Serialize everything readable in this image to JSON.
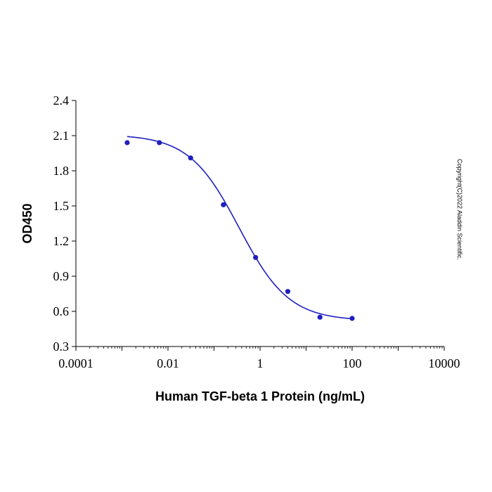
{
  "chart_data": {
    "type": "scatter",
    "xscale": "log",
    "xlabel": "Human TGF-beta 1 Protein (ng/mL)",
    "ylabel": "OD450",
    "xlim": [
      0.0001,
      10000
    ],
    "ylim": [
      0.3,
      2.4
    ],
    "xticks": [
      0.0001,
      0.001,
      0.01,
      0.1,
      1,
      10,
      100,
      1000,
      10000
    ],
    "xtick_labels": [
      "0.0001",
      "",
      "0.01",
      "",
      "1",
      "",
      "100",
      "",
      "10000"
    ],
    "yticks": [
      0.3,
      0.6,
      0.9,
      1.2,
      1.5,
      1.8,
      2.1,
      2.4
    ],
    "ytick_labels": [
      "0.3",
      "0.6",
      "0.9",
      "1.2",
      "1.5",
      "1.8",
      "2.1",
      "2.4"
    ],
    "grid": false,
    "series": [
      {
        "x": [
          0.0013,
          0.0065,
          0.031,
          0.16,
          0.8,
          4,
          20,
          100
        ],
        "y": [
          2.04,
          2.04,
          1.91,
          1.51,
          1.06,
          0.77,
          0.55,
          0.54
        ]
      }
    ],
    "fit_curve": {
      "model": "4PL",
      "top": 2.11,
      "bottom": 0.52,
      "ec50": 0.35,
      "hill": 0.8
    },
    "colors": {
      "points": "#1f1fbf",
      "curve": "#1f1fbf",
      "axes": "#000000"
    }
  },
  "copyright": "Copyright(C)2022 Aladdin Scientific."
}
